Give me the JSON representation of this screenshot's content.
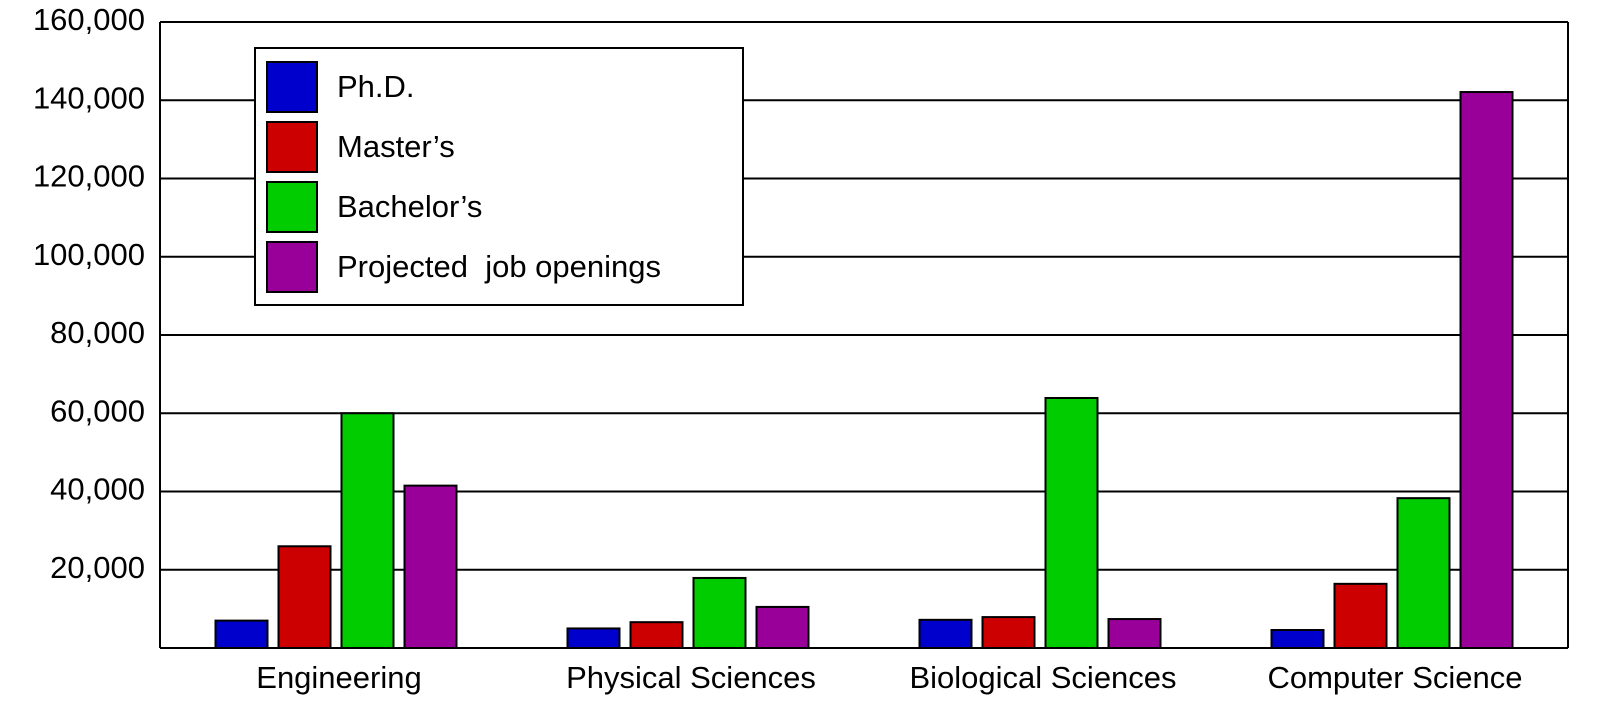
{
  "chart_data": {
    "type": "bar",
    "categories": [
      "Engineering",
      "Physical Sciences",
      "Biological Sciences",
      "Computer Science"
    ],
    "series": [
      {
        "name": "Ph.D.",
        "color": "#0000cc",
        "values": [
          7000,
          5000,
          7200,
          4600
        ]
      },
      {
        "name": "Master’s",
        "color": "#cc0000",
        "values": [
          26000,
          6600,
          7900,
          16400
        ]
      },
      {
        "name": "Bachelor’s",
        "color": "#00cc00",
        "values": [
          60000,
          17900,
          63900,
          38300
        ]
      },
      {
        "name": "Projected  job openings",
        "color": "#990099",
        "values": [
          41500,
          10500,
          7400,
          142100
        ]
      }
    ],
    "ylim": [
      0,
      160000
    ],
    "yticks": [
      {
        "value": 20000,
        "label": "20,000"
      },
      {
        "value": 40000,
        "label": "40,000"
      },
      {
        "value": 60000,
        "label": "60,000"
      },
      {
        "value": 80000,
        "label": "80,000"
      },
      {
        "value": 100000,
        "label": "100,000"
      },
      {
        "value": 120000,
        "label": "120,000"
      },
      {
        "value": 140000,
        "label": "140,000"
      },
      {
        "value": 160000,
        "label": "160,000"
      }
    ],
    "grid": true,
    "legend": "upper left"
  }
}
